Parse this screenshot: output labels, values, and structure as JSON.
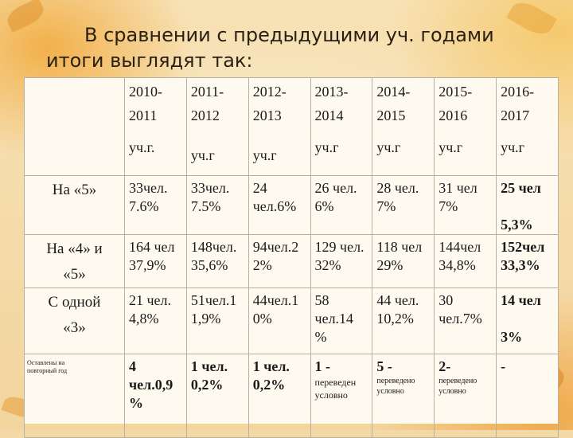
{
  "title": {
    "line1": "В сравнении с предыдущими уч. годами",
    "line2": "итоги выглядят так:"
  },
  "table": {
    "header": [
      {
        "year": "2010-\n2011",
        "suffix": "уч.г."
      },
      {
        "year": "2011-\n2012",
        "suffix": "уч.г"
      },
      {
        "year": "2012-\n2013",
        "suffix": "уч.г"
      },
      {
        "year": "2013-\n2014",
        "suffix": "уч.г"
      },
      {
        "year": "2014-\n2015",
        "suffix": "уч.г"
      },
      {
        "year": "2015-\n2016",
        "suffix": "уч.г"
      },
      {
        "year": "2016-\n2017",
        "suffix": "уч.г"
      }
    ],
    "rows": [
      {
        "label": "На «5»",
        "cells": [
          "33чел.\n7.6%",
          "33чел.\n7.5%",
          "24\nчел.6%",
          "26 чел.\n6%",
          "28 чел.\n7%",
          "31 чел\n7%",
          "25 чел\n\n5,3%"
        ]
      },
      {
        "label": "На «4» и\n«5»",
        "cells": [
          "164 чел\n37,9%",
          "148чел.\n35,6%",
          "94чел.2\n2%",
          "129 чел.\n32%",
          "118 чел\n29%",
          "144чел\n34,8%",
          "152чел\n33,3%"
        ]
      },
      {
        "label": "С одной\n«3»",
        "cells": [
          "21 чел.\n4,8%",
          "51чел.1\n1,9%",
          "44чел.1\n0%",
          "58\nчел.14\n%",
          "44 чел.\n10,2%",
          "30\nчел.7%",
          "14 чел\n\n3%"
        ]
      },
      {
        "label": "Оставлены на\nповторный год",
        "cells": [
          {
            "main": "4\nчел.0,9\n%"
          },
          {
            "main": "1 чел.\n0,2%"
          },
          {
            "main": "1 чел.\n0,2%"
          },
          {
            "main": "1 -",
            "note": "переведен\nусловно"
          },
          {
            "main": "5 -",
            "note": "переведено\nусловно"
          },
          {
            "main": "2-",
            "note": "переведено\nусловно"
          },
          {
            "main": "-"
          }
        ]
      }
    ]
  }
}
